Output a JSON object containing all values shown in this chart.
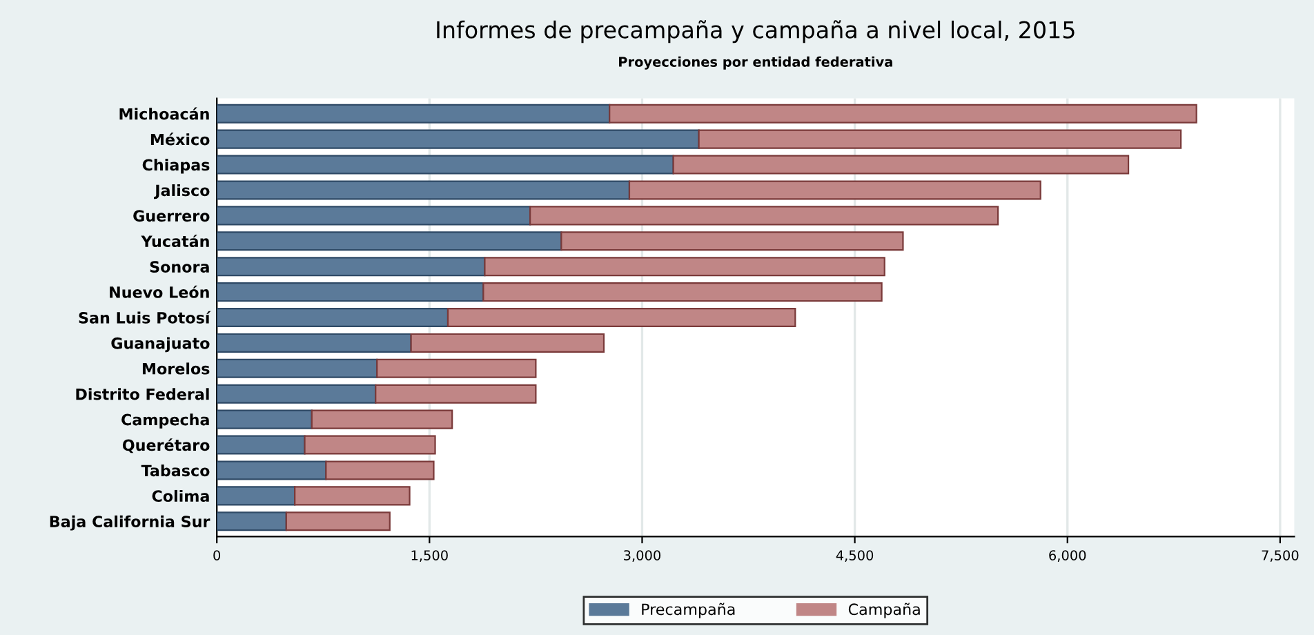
{
  "chart_data": {
    "type": "bar",
    "orientation": "horizontal",
    "stacked": true,
    "title": "Informes de precampaña y campaña a nivel local, 2015",
    "subtitle": "Proyecciones por entidad federativa",
    "categories": [
      "Michoacán",
      "México",
      "Chiapas",
      "Jalisco",
      "Guerrero",
      "Yucatán",
      "Sonora",
      "Nuevo León",
      "San Luis Potosí",
      "Guanajuato",
      "Morelos",
      "Distrito Federal",
      "Campecha",
      "Querétaro",
      "Tabasco",
      "Colima",
      "Baja California Sur"
    ],
    "series": [
      {
        "name": "Precampaña",
        "color": "#5b7a99",
        "values": [
          2770,
          3400,
          3220,
          2910,
          2210,
          2430,
          1890,
          1880,
          1630,
          1370,
          1130,
          1120,
          670,
          620,
          770,
          550,
          490
        ]
      },
      {
        "name": "Campaña",
        "color": "#c08686",
        "values": [
          4140,
          3400,
          3210,
          2900,
          3300,
          2410,
          2820,
          2810,
          2450,
          1360,
          1120,
          1130,
          990,
          920,
          760,
          810,
          730
        ]
      }
    ],
    "xlim": [
      0,
      7600
    ],
    "xticks": [
      0,
      {
        "value": 1500,
        "label": "1,500"
      },
      {
        "value": 3000,
        "label": "3,000"
      },
      {
        "value": 4500,
        "label": "4,500"
      },
      {
        "value": 6000,
        "label": "6,000"
      },
      {
        "value": 7500,
        "label": "7,500"
      }
    ],
    "grid": "x",
    "legend": "bottom"
  }
}
